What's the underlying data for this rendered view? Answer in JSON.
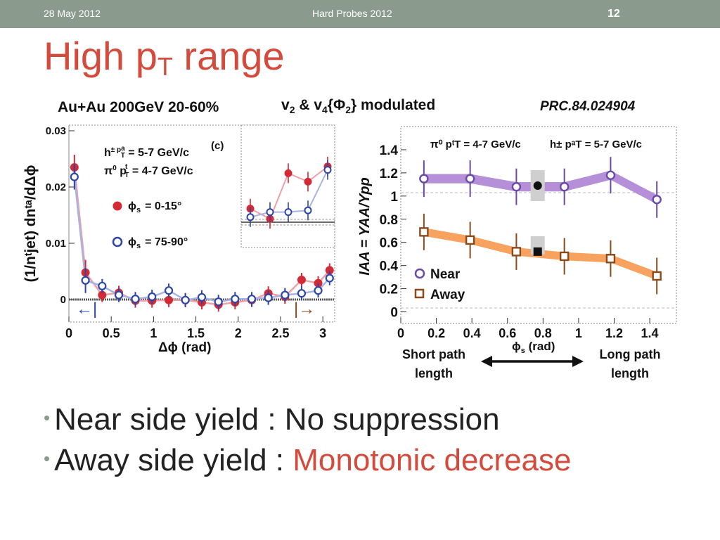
{
  "header": {
    "date": "28 May 2012",
    "conference": "Hard Probes 2012",
    "slide_number": "12"
  },
  "title": {
    "main": "High p",
    "sub": "T",
    "rest": " range"
  },
  "labels": {
    "collision": "Au+Au 200GeV 20-60%",
    "modulated_v": "v",
    "modulated_2": "2",
    "modulated_amp": " & v",
    "modulated_4": "4",
    "modulated_phi": "{Φ",
    "modulated_phisub": "2",
    "modulated_tail": "} modulated",
    "reference": "PRC.84.024904"
  },
  "colors": {
    "accent": "#d34b3c",
    "topbar": "#8a9b8e",
    "filled": "#d42a35",
    "open": "#2b46a8",
    "near": "#6a4aa5",
    "near_band": "#b590d8",
    "away": "#8a4a1c",
    "away_band": "#f7a35f"
  },
  "chart_data": [
    {
      "type": "scatter",
      "panel_label": "(c)",
      "xlabel": "Δϕ (rad)",
      "ylabel": "(1/nᵗjet) dnᵗᵃ/dΔϕ",
      "xlim": [
        0,
        3.14
      ],
      "ylim": [
        -0.004,
        0.031
      ],
      "xticks": [
        0,
        0.5,
        1,
        1.5,
        2,
        2.5,
        3
      ],
      "xtick_labels": [
        "0",
        "0.5",
        "1",
        "1.5",
        "2",
        "2.5",
        "3"
      ],
      "yticks": [
        0,
        0.01,
        0.02,
        0.03
      ],
      "ytick_labels": [
        "0",
        "0.01",
        "0.02",
        "0.03"
      ],
      "legend_text": {
        "line1_a": "h",
        "line1_b": "± p",
        "line1_c": "a",
        "line1_d": "T",
        "line1_e": " = 5-7 GeV/c",
        "line2_a": "π",
        "line2_b": "0",
        "line2_c": " p",
        "line2_d": "t",
        "line2_e": "T",
        "line2_f": " = 4-7 GeV/c"
      },
      "series": [
        {
          "name": "ϕs = 0-15°",
          "label_phi": "ϕ",
          "label_sub": "s",
          "label_val": "= 0-15°",
          "marker": "filled",
          "x": [
            0.065,
            0.196,
            0.393,
            0.59,
            0.785,
            0.982,
            1.18,
            1.376,
            1.57,
            1.767,
            1.963,
            2.16,
            2.356,
            2.553,
            2.749,
            2.945,
            3.08
          ],
          "y": [
            0.0235,
            0.0048,
            0.0008,
            0.0012,
            -0.0002,
            -0.0002,
            -0.0001,
            -0.0001,
            -0.0005,
            -0.0009,
            -0.0005,
            -0.0001,
            0.0011,
            0.0005,
            0.0035,
            0.0029,
            0.0052
          ]
        },
        {
          "name": "ϕs = 75-90°",
          "label_phi": "ϕ",
          "label_sub": "s",
          "label_val": "= 75-90°",
          "marker": "open",
          "x": [
            0.065,
            0.196,
            0.393,
            0.59,
            0.785,
            0.982,
            1.18,
            1.376,
            1.57,
            1.767,
            1.963,
            2.16,
            2.356,
            2.553,
            2.749,
            2.945,
            3.08
          ],
          "y": [
            0.0218,
            0.0034,
            0.0024,
            0.0008,
            0.0001,
            0.0005,
            0.0016,
            -0.0001,
            0.0004,
            -0.0004,
            0.0001,
            0.0001,
            0.0003,
            0.0008,
            0.0011,
            0.0016,
            0.0038
          ]
        }
      ],
      "inset": {
        "filled_y": [
          0.0023,
          0.0017,
          0.0044,
          0.0039,
          0.0048
        ],
        "open_y": [
          0.0018,
          0.0021,
          0.0021,
          0.0022,
          0.0046
        ]
      },
      "arrow_left": "←|",
      "arrow_right": "|→"
    },
    {
      "type": "line",
      "xlabel": "ϕs (rad)",
      "ylabel": "IAA = YAA/Ypp",
      "xlim": [
        0,
        1.55
      ],
      "ylim": [
        -0.1,
        1.6
      ],
      "xticks": [
        0,
        0.2,
        0.4,
        0.6,
        0.8,
        1,
        1.2,
        1.4
      ],
      "xtick_labels": [
        "0",
        "0.2",
        "0.4",
        "0.6",
        "0.8",
        "1",
        "1.2",
        "1.4"
      ],
      "yticks": [
        0,
        0.2,
        0.4,
        0.6,
        0.8,
        1,
        1.2,
        1.4
      ],
      "ytick_labels": [
        "0",
        "0.2",
        "0.4",
        "0.6",
        "0.8",
        "1",
        "1.2",
        "1.4"
      ],
      "legend_header_left": "π⁰ pᵗT = 4-7 GeV/c",
      "legend_header_right": "h± pᵃT = 5-7 GeV/c",
      "x": [
        0.13,
        0.39,
        0.65,
        0.92,
        1.18,
        1.44
      ],
      "series": [
        {
          "name": "Near",
          "y": [
            1.15,
            1.15,
            1.08,
            1.08,
            1.18,
            0.97
          ],
          "band_halfwidth": 0.04
        },
        {
          "name": "Away",
          "y": [
            0.69,
            0.62,
            0.52,
            0.48,
            0.46,
            0.31
          ],
          "band_halfwidth": 0.035
        }
      ],
      "integrated_points": [
        {
          "series": "Near",
          "x": 0.77,
          "y": 1.09
        },
        {
          "series": "Away",
          "x": 0.77,
          "y": 0.52
        }
      ],
      "annotations": {
        "short_path_1": "Short path",
        "short_path_2": "length",
        "long_path_1": "Long path",
        "long_path_2": "length",
        "phis_phi": "ϕ",
        "phis_sub": "s",
        "phis_unit": " (rad)"
      }
    }
  ],
  "bullets": {
    "near": "Near side yield : No suppression",
    "away_prefix": "Away side yield : ",
    "away_highlight": "Monotonic decrease"
  }
}
